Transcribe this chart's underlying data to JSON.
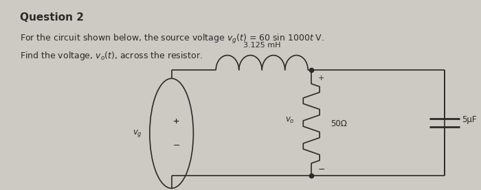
{
  "title": "Question 2",
  "line1": "For the circuit shown below, the source voltage v_g(t) = 60 sin 1000t V.",
  "line2": "Find the voltage, v_o(t), across the resistor.",
  "bg_color": "#cdc9c3",
  "text_color": "#1a1a1a",
  "circuit": {
    "inductor_label": "3.125 mH",
    "resistor_label": "50Ω",
    "capacitor_label": "5μF"
  }
}
